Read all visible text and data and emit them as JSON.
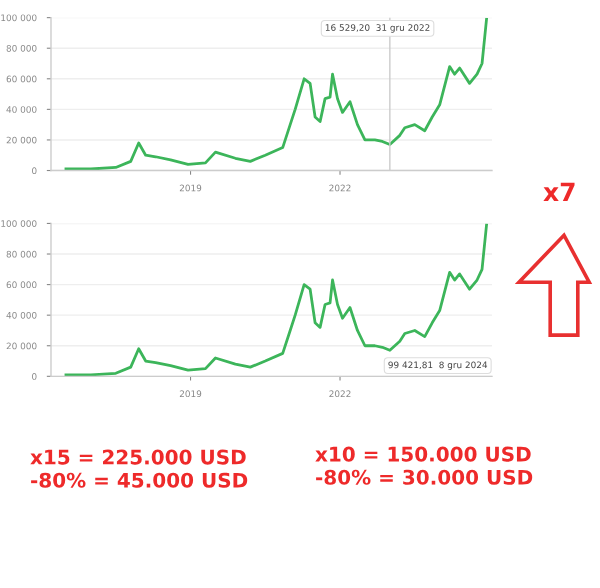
{
  "chart_data": [
    {
      "type": "line",
      "x": [
        2016.5,
        2017.0,
        2017.5,
        2017.8,
        2017.96,
        2018.1,
        2018.3,
        2018.6,
        2018.95,
        2019.3,
        2019.5,
        2019.9,
        2020.2,
        2020.5,
        2020.85,
        2021.0,
        2021.1,
        2021.28,
        2021.4,
        2021.5,
        2021.6,
        2021.7,
        2021.8,
        2021.85,
        2021.95,
        2022.05,
        2022.2,
        2022.35,
        2022.5,
        2022.7,
        2022.85,
        2023.0,
        2023.2,
        2023.3,
        2023.5,
        2023.7,
        2023.85,
        2024.0,
        2024.2,
        2024.3,
        2024.4,
        2024.6,
        2024.75,
        2024.85,
        2024.94
      ],
      "series": [
        {
          "color": "#3cb55a",
          "values": [
            1000,
            1000,
            2000,
            6000,
            18000,
            10000,
            9000,
            7000,
            4000,
            5000,
            12000,
            8000,
            6000,
            10000,
            15000,
            30000,
            40000,
            60000,
            57000,
            35000,
            32000,
            47000,
            48000,
            63000,
            47000,
            38000,
            45000,
            30000,
            20000,
            20000,
            19000,
            17000,
            23000,
            28000,
            30000,
            26000,
            35000,
            43000,
            68000,
            63000,
            67000,
            57000,
            63000,
            70000,
            99000
          ]
        }
      ],
      "xlim": [
        2016.2,
        2025.05
      ],
      "xticks": [
        2019,
        2022
      ],
      "ylim": [
        0,
        100000
      ],
      "yticks": [
        {
          "value": 0,
          "label": "0"
        },
        {
          "value": 20000,
          "label": "20 000"
        },
        {
          "value": 40000,
          "label": "40 000"
        },
        {
          "value": 60000,
          "label": "60 000"
        },
        {
          "value": 80000,
          "label": "80 000"
        },
        {
          "value": 100000,
          "label": "100 000"
        }
      ],
      "grid": "y",
      "marker": "none",
      "line_style": "solid",
      "ref_lines": [
        {
          "axis": "x",
          "value": 2023.0,
          "label": null,
          "color": "#cccccc"
        }
      ],
      "annotations": [
        "16 529,20  31 gru 2022"
      ]
    },
    {
      "type": "line",
      "x": [
        2016.5,
        2017.0,
        2017.5,
        2017.8,
        2017.96,
        2018.1,
        2018.3,
        2018.6,
        2018.95,
        2019.3,
        2019.5,
        2019.9,
        2020.2,
        2020.5,
        2020.85,
        2021.0,
        2021.1,
        2021.28,
        2021.4,
        2021.5,
        2021.6,
        2021.7,
        2021.8,
        2021.85,
        2021.95,
        2022.05,
        2022.2,
        2022.35,
        2022.5,
        2022.7,
        2022.85,
        2023.0,
        2023.2,
        2023.3,
        2023.5,
        2023.7,
        2023.85,
        2024.0,
        2024.2,
        2024.3,
        2024.4,
        2024.6,
        2024.75,
        2024.85,
        2024.94
      ],
      "series": [
        {
          "color": "#3cb55a",
          "values": [
            1000,
            1000,
            2000,
            6000,
            18000,
            10000,
            9000,
            7000,
            4000,
            5000,
            12000,
            8000,
            6000,
            10000,
            15000,
            30000,
            40000,
            60000,
            57000,
            35000,
            32000,
            47000,
            48000,
            63000,
            47000,
            38000,
            45000,
            30000,
            20000,
            20000,
            19000,
            17000,
            23000,
            28000,
            30000,
            26000,
            35000,
            43000,
            68000,
            63000,
            67000,
            57000,
            63000,
            70000,
            99000
          ]
        }
      ],
      "xlim": [
        2016.2,
        2025.05
      ],
      "xticks": [
        2019,
        2022
      ],
      "ylim": [
        0,
        100000
      ],
      "yticks": [
        {
          "value": 0,
          "label": "0"
        },
        {
          "value": 20000,
          "label": "20 000"
        },
        {
          "value": 40000,
          "label": "40 000"
        },
        {
          "value": 60000,
          "label": "60 000"
        },
        {
          "value": 80000,
          "label": "80 000"
        },
        {
          "value": 100000,
          "label": "100 000"
        }
      ],
      "grid": "y",
      "marker": "none",
      "line_style": "solid",
      "annotations": [
        "99 421,81  8 gru 2024"
      ]
    },
    {
      "type": "other",
      "annotations": [
        "x7",
        "x15 = 225.000 USD\n-80% = 45.000 USD",
        "x10 = 150.000 USD\n-80% = 30.000 USD"
      ]
    }
  ]
}
